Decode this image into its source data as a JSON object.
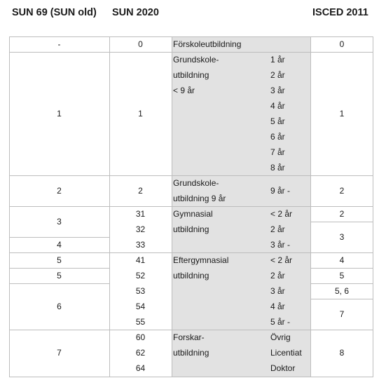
{
  "headers": {
    "sun69": "SUN 69 (SUN old)",
    "sun2020": "SUN 2020",
    "isced": "ISCED 2011"
  },
  "sun69": [
    "-",
    "1",
    "2",
    "3",
    "4",
    "5",
    "5",
    "6",
    "7"
  ],
  "sun2020": [
    "0",
    "1",
    "2",
    "31",
    "32",
    "33",
    "41",
    "52",
    "53",
    "54",
    "55",
    "60",
    "62",
    "64"
  ],
  "isced": [
    "0",
    "1",
    "2",
    "2",
    "3",
    "4",
    "5",
    "5, 6",
    "7",
    "8"
  ],
  "labels": {
    "forskola": "Förskoleutbildning",
    "grund_l1": "Grundskole-",
    "grund_l2": "utbildning",
    "grund_l3": "< 9 år",
    "grund9_l1": "Grundskole-",
    "grund9_l2": "utbildning 9 år",
    "gymn_l1": "Gymnasial",
    "gymn_l2": "utbildning",
    "efter_l1": "Eftergymnasial",
    "efter_l2": "utbildning",
    "forsk_l1": "Forskar-",
    "forsk_l2": "utbildning"
  },
  "levels": {
    "grund": [
      "1 år",
      "2 år",
      "3 år",
      "4 år",
      "5 år",
      "6 år",
      "7 år",
      "8 år"
    ],
    "grund9": "9 år -",
    "gymn": [
      "< 2 år",
      "2 år",
      "3 år -"
    ],
    "efter": [
      "< 2 år",
      "2 år",
      "3 år",
      "4 år",
      "5 år -"
    ],
    "forsk": [
      "Övrig",
      "Licentiat",
      "Doktor"
    ]
  }
}
